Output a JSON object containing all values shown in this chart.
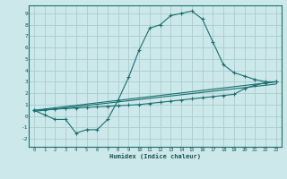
{
  "xlabel": "Humidex (Indice chaleur)",
  "bg_color": "#cce8ea",
  "grid_color": "#aacccc",
  "line_color": "#1a7070",
  "xlim": [
    -0.5,
    23.5
  ],
  "ylim": [
    -2.7,
    9.7
  ],
  "xticks": [
    0,
    1,
    2,
    3,
    4,
    5,
    6,
    7,
    8,
    9,
    10,
    11,
    12,
    13,
    14,
    15,
    16,
    17,
    18,
    19,
    20,
    21,
    22,
    23
  ],
  "yticks": [
    -2,
    -1,
    0,
    1,
    2,
    3,
    4,
    5,
    6,
    7,
    8,
    9
  ],
  "curve1_x": [
    0,
    1,
    2,
    3,
    4,
    5,
    6,
    7,
    8,
    9,
    10,
    11,
    12,
    13,
    14,
    15,
    16,
    17,
    18,
    19,
    20,
    21,
    22,
    23
  ],
  "curve1_y": [
    0.5,
    0.1,
    -0.3,
    -0.3,
    -1.5,
    -1.2,
    -1.2,
    -0.3,
    1.4,
    3.4,
    5.8,
    7.7,
    8.0,
    8.8,
    9.0,
    9.2,
    8.5,
    6.5,
    4.5,
    3.8,
    3.5,
    3.2,
    3.0,
    3.0
  ],
  "curve2_x": [
    0,
    1,
    2,
    3,
    4,
    5,
    6,
    7,
    8,
    9,
    10,
    11,
    12,
    13,
    14,
    15,
    16,
    17,
    18,
    19,
    20,
    21,
    22,
    23
  ],
  "curve2_y": [
    0.5,
    0.55,
    0.6,
    0.65,
    0.7,
    0.75,
    0.8,
    0.85,
    0.9,
    0.95,
    1.0,
    1.1,
    1.2,
    1.3,
    1.4,
    1.5,
    1.6,
    1.7,
    1.8,
    1.9,
    2.4,
    2.7,
    2.9,
    3.0
  ],
  "curve3_x": [
    0,
    23
  ],
  "curve3_y": [
    0.5,
    3.0
  ],
  "curve4_x": [
    0,
    23
  ],
  "curve4_y": [
    0.4,
    2.8
  ]
}
